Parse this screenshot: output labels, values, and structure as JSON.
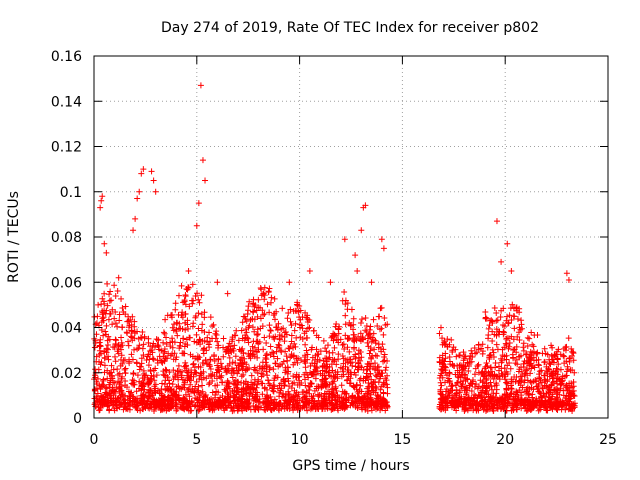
{
  "chart_data": {
    "type": "scatter",
    "title": "Day 274 of 2019, Rate Of TEC Index for receiver p802",
    "xlabel": "GPS time / hours",
    "ylabel": "ROTI / TECUs",
    "xlim": [
      0,
      25
    ],
    "ylim": [
      0,
      0.16
    ],
    "x_ticks": [
      0,
      5,
      10,
      15,
      20,
      25
    ],
    "x_tick_labels": [
      "0",
      "5",
      "10",
      "15",
      "20",
      "25"
    ],
    "y_ticks": [
      0,
      0.02,
      0.04,
      0.06,
      0.08,
      0.1,
      0.12,
      0.14,
      0.16
    ],
    "y_tick_labels": [
      "0",
      "0.02",
      "0.04",
      "0.06",
      "0.08",
      "0.1",
      "0.12",
      "0.14",
      "0.16"
    ],
    "grid": true,
    "marker": "+",
    "color": "#ff0000",
    "series": [
      {
        "name": "ROTI",
        "segments": [
          {
            "x_start": 0.0,
            "x_end": 14.3
          },
          {
            "x_start": 16.8,
            "x_end": 23.4
          }
        ],
        "x": [
          0.2,
          0.3,
          0.35,
          0.4,
          0.5,
          0.6,
          1.2,
          1.9,
          2.0,
          2.1,
          2.2,
          2.3,
          2.4,
          2.8,
          2.9,
          3.0,
          4.5,
          4.6,
          5.0,
          5.1,
          5.2,
          5.3,
          5.4,
          6.0,
          6.5,
          9.5,
          10.5,
          11.5,
          12.2,
          12.7,
          12.8,
          13.0,
          13.1,
          13.2,
          13.5,
          14.0,
          14.1,
          19.6,
          19.8,
          20.1,
          20.3,
          23.0,
          23.1
        ],
        "y": [
          0.05,
          0.093,
          0.096,
          0.098,
          0.077,
          0.073,
          0.062,
          0.083,
          0.088,
          0.097,
          0.1,
          0.108,
          0.11,
          0.109,
          0.105,
          0.1,
          0.057,
          0.065,
          0.085,
          0.095,
          0.147,
          0.114,
          0.105,
          0.06,
          0.055,
          0.06,
          0.065,
          0.06,
          0.079,
          0.072,
          0.065,
          0.083,
          0.093,
          0.094,
          0.06,
          0.079,
          0.075,
          0.087,
          0.069,
          0.077,
          0.065,
          0.064,
          0.061
        ]
      }
    ]
  }
}
